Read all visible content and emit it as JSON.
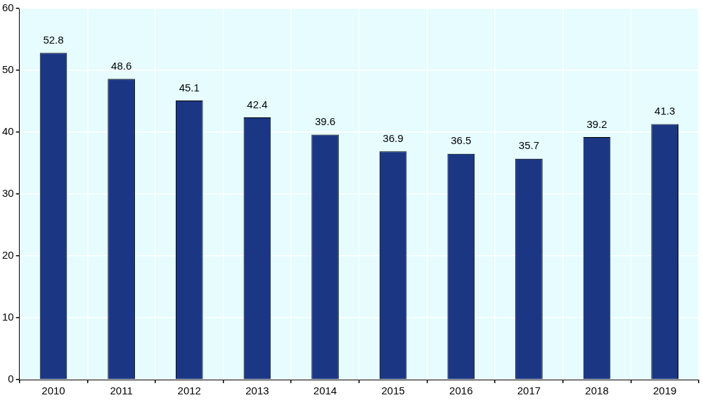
{
  "chart_data": {
    "type": "bar",
    "categories": [
      "2010",
      "2011",
      "2012",
      "2013",
      "2014",
      "2015",
      "2016",
      "2017",
      "2018",
      "2019"
    ],
    "values": [
      52.8,
      48.6,
      45.1,
      42.4,
      39.6,
      36.9,
      36.5,
      35.7,
      39.2,
      41.3
    ],
    "color": "#1b3784",
    "ylim": [
      0,
      60
    ],
    "yticks": [
      0,
      10,
      20,
      30,
      40,
      50,
      60
    ],
    "grid": true,
    "data_labels": true
  }
}
